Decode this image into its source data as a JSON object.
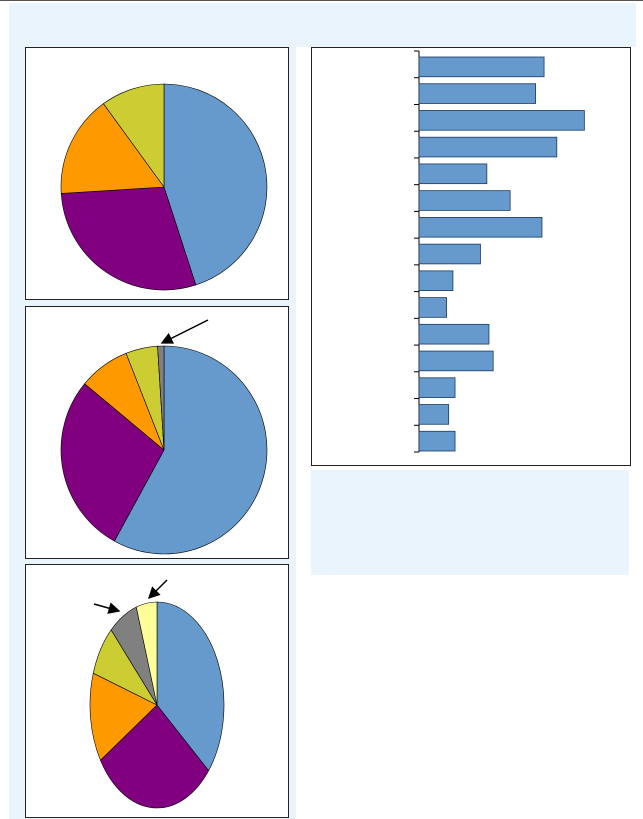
{
  "chart_data": [
    {
      "type": "pie",
      "values": [
        45,
        29,
        16,
        10
      ],
      "colors": [
        "#6699cc",
        "#800080",
        "#ff9900",
        "#cccc33"
      ]
    },
    {
      "type": "pie",
      "values": [
        58,
        28,
        8,
        5,
        1
      ],
      "colors": [
        "#6699cc",
        "#800080",
        "#ff9900",
        "#cccc33",
        "#808080"
      ]
    },
    {
      "type": "pie",
      "values": [
        36,
        30,
        14,
        8,
        7,
        5
      ],
      "colors": [
        "#6699cc",
        "#800080",
        "#ff9900",
        "#cccc33",
        "#808080",
        "#ffff99"
      ]
    },
    {
      "type": "bar",
      "orientation": "horizontal",
      "categories": [
        null,
        null,
        null,
        null,
        null,
        null,
        null,
        null,
        null,
        null,
        null,
        null,
        null,
        null,
        null
      ],
      "values": [
        59,
        55,
        78,
        65,
        32,
        43,
        58,
        29,
        16,
        13,
        33,
        35,
        17,
        14,
        17
      ],
      "color": "#6699cc",
      "xlim": [
        0,
        100
      ]
    }
  ]
}
